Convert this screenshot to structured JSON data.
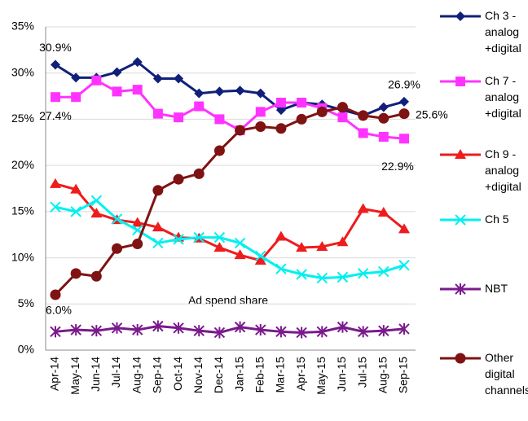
{
  "chart_data": {
    "type": "line",
    "annotation": "Ad spend share",
    "categories": [
      "Apr-14",
      "May-14",
      "Jun-14",
      "Jul-14",
      "Aug-14",
      "Sep-14",
      "Oct-14",
      "Nov-14",
      "Dec-14",
      "Jan-15",
      "Feb-15",
      "Mar-15",
      "Apr-15",
      "May-15",
      "Jun-15",
      "Jul-15",
      "Aug-15",
      "Sep-15"
    ],
    "ylim": [
      0,
      35
    ],
    "yticks": [
      {
        "value": 0,
        "label": "0%"
      },
      {
        "value": 5,
        "label": "5%"
      },
      {
        "value": 10,
        "label": "10%"
      },
      {
        "value": 15,
        "label": "15%"
      },
      {
        "value": 20,
        "label": "20%"
      },
      {
        "value": 25,
        "label": "25%"
      },
      {
        "value": 30,
        "label": "30%"
      },
      {
        "value": 35,
        "label": "35%"
      }
    ],
    "grid": true,
    "legend": "right",
    "series": [
      {
        "name": "Ch 3 - analog +digital",
        "color": "#10207a",
        "marker": "diamond",
        "values": [
          30.9,
          29.5,
          29.5,
          30.1,
          31.2,
          29.4,
          29.4,
          27.8,
          28.0,
          28.1,
          27.8,
          26.0,
          26.8,
          26.6,
          26.0,
          25.4,
          26.3,
          26.9
        ],
        "value_labels": [
          "30.9%",
          null,
          null,
          null,
          null,
          null,
          null,
          null,
          null,
          null,
          null,
          null,
          null,
          null,
          null,
          null,
          null,
          "26.9%"
        ]
      },
      {
        "name": "Ch 7 - analog +digital",
        "color": "#ff33ff",
        "marker": "square",
        "values": [
          27.4,
          27.4,
          29.2,
          28.0,
          28.2,
          25.6,
          25.2,
          26.4,
          25.0,
          23.8,
          25.8,
          26.8,
          26.8,
          26.2,
          25.2,
          23.5,
          23.1,
          22.9
        ],
        "value_labels": [
          "27.4%",
          null,
          null,
          null,
          null,
          null,
          null,
          null,
          null,
          null,
          null,
          null,
          null,
          null,
          null,
          null,
          null,
          "22.9%"
        ]
      },
      {
        "name": "Ch 9 - analog +digital",
        "color": "#ee1c1c",
        "marker": "triangle",
        "values": [
          18.0,
          17.4,
          14.8,
          14.1,
          13.8,
          13.3,
          12.2,
          12.1,
          11.1,
          10.3,
          9.7,
          12.3,
          11.1,
          11.2,
          11.7,
          15.3,
          14.9,
          13.1
        ]
      },
      {
        "name": "Ch 5",
        "color": "#00f0f0",
        "marker": "x",
        "values": [
          15.5,
          15.0,
          16.2,
          14.2,
          13.0,
          11.6,
          12.0,
          12.2,
          12.2,
          11.6,
          10.2,
          8.8,
          8.2,
          7.8,
          7.9,
          8.3,
          8.5,
          9.2
        ]
      },
      {
        "name": "NBT",
        "color": "#7a1a8c",
        "marker": "star",
        "values": [
          2.0,
          2.2,
          2.1,
          2.4,
          2.2,
          2.6,
          2.4,
          2.1,
          1.9,
          2.5,
          2.2,
          2.0,
          1.9,
          2.0,
          2.5,
          2.0,
          2.1,
          2.3
        ]
      },
      {
        "name": "Other digital channels",
        "color": "#7f1212",
        "marker": "circle",
        "values": [
          6.0,
          8.3,
          8.0,
          11.0,
          11.5,
          17.3,
          18.5,
          19.1,
          21.6,
          23.8,
          24.2,
          24.0,
          25.0,
          25.8,
          26.3,
          25.4,
          25.1,
          25.6
        ],
        "value_labels": [
          "6.0%",
          null,
          null,
          null,
          null,
          null,
          null,
          null,
          null,
          null,
          null,
          null,
          null,
          null,
          null,
          null,
          null,
          "25.6%"
        ]
      }
    ]
  }
}
